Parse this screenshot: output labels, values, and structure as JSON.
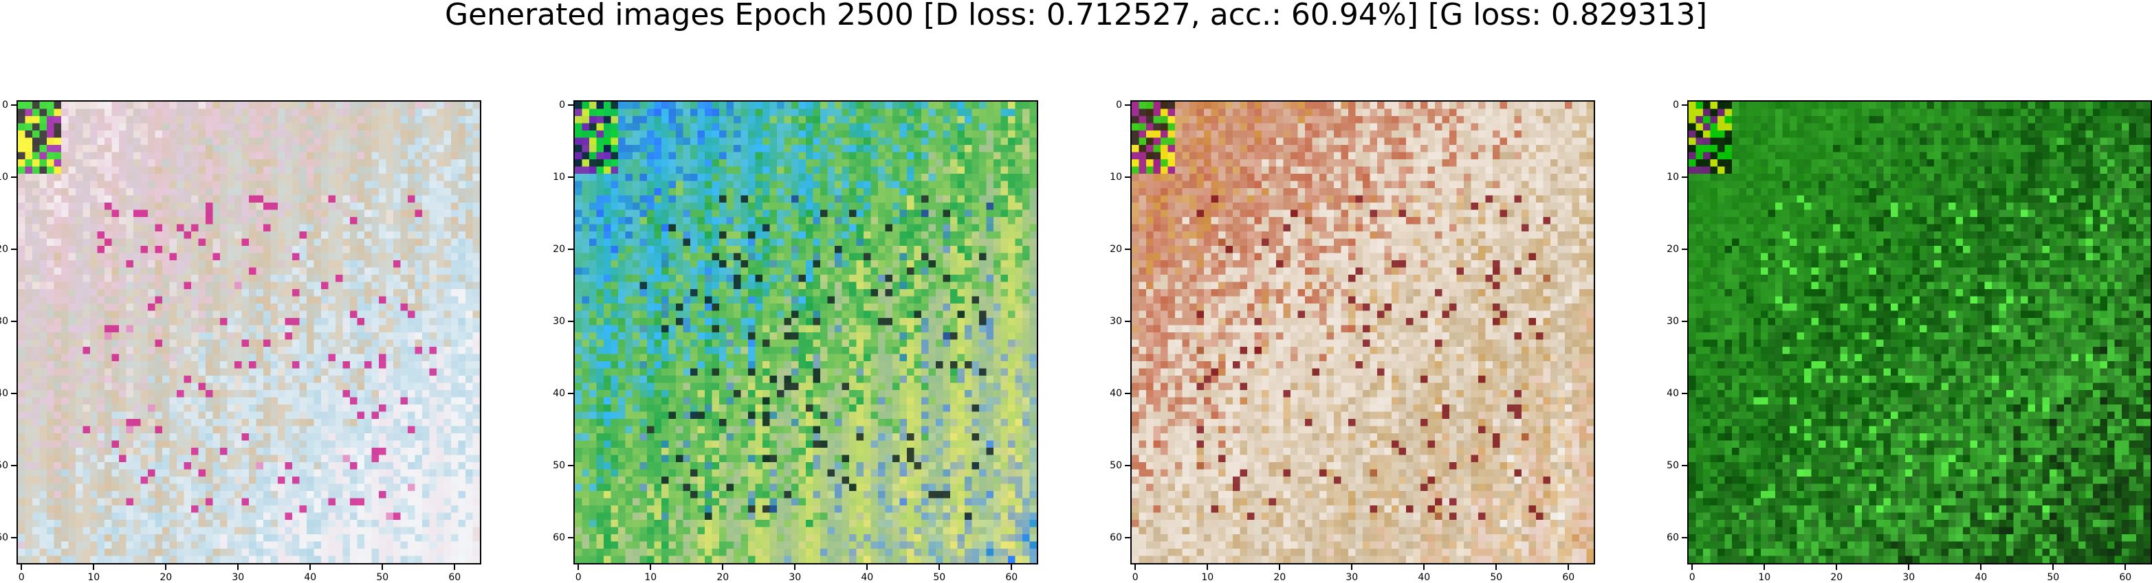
{
  "figure": {
    "title": "Generated images Epoch 2500 [D loss: 0.712527, acc.: 60.94%] [G loss: 0.829313]"
  },
  "axes": {
    "x_ticks": [
      "0",
      "10",
      "20",
      "30",
      "40",
      "50",
      "60"
    ],
    "y_ticks": [
      "0",
      "10",
      "20",
      "30",
      "40",
      "50",
      "60"
    ],
    "x_tick_values": [
      0,
      10,
      20,
      30,
      40,
      50,
      60
    ],
    "y_tick_values": [
      0,
      10,
      20,
      30,
      40,
      50,
      60
    ],
    "pixel_range": [
      -0.5,
      63.5
    ]
  },
  "panels": [
    {
      "name": "generated-image-1",
      "palette": [
        "#f4eef2",
        "#e8c8da",
        "#d9c2a4",
        "#b7d8e8",
        "#f1f6f8"
      ],
      "accent": "#d11a8a"
    },
    {
      "name": "generated-image-2",
      "palette": [
        "#2d73ff",
        "#39b9ff",
        "#21aa4f",
        "#b6d96b",
        "#f0e86e"
      ],
      "accent": "#0a1a1f"
    },
    {
      "name": "generated-image-3",
      "palette": [
        "#d49b46",
        "#c76a4b",
        "#f0e3d7",
        "#c9b28e",
        "#f5f5f5"
      ],
      "accent": "#7a0b14"
    },
    {
      "name": "generated-image-4",
      "palette": [
        "#1f8a16",
        "#2f9e24",
        "#0b5d0a",
        "#49c83d",
        "#0f2a0f"
      ],
      "accent": "#63ff4d"
    }
  ]
}
